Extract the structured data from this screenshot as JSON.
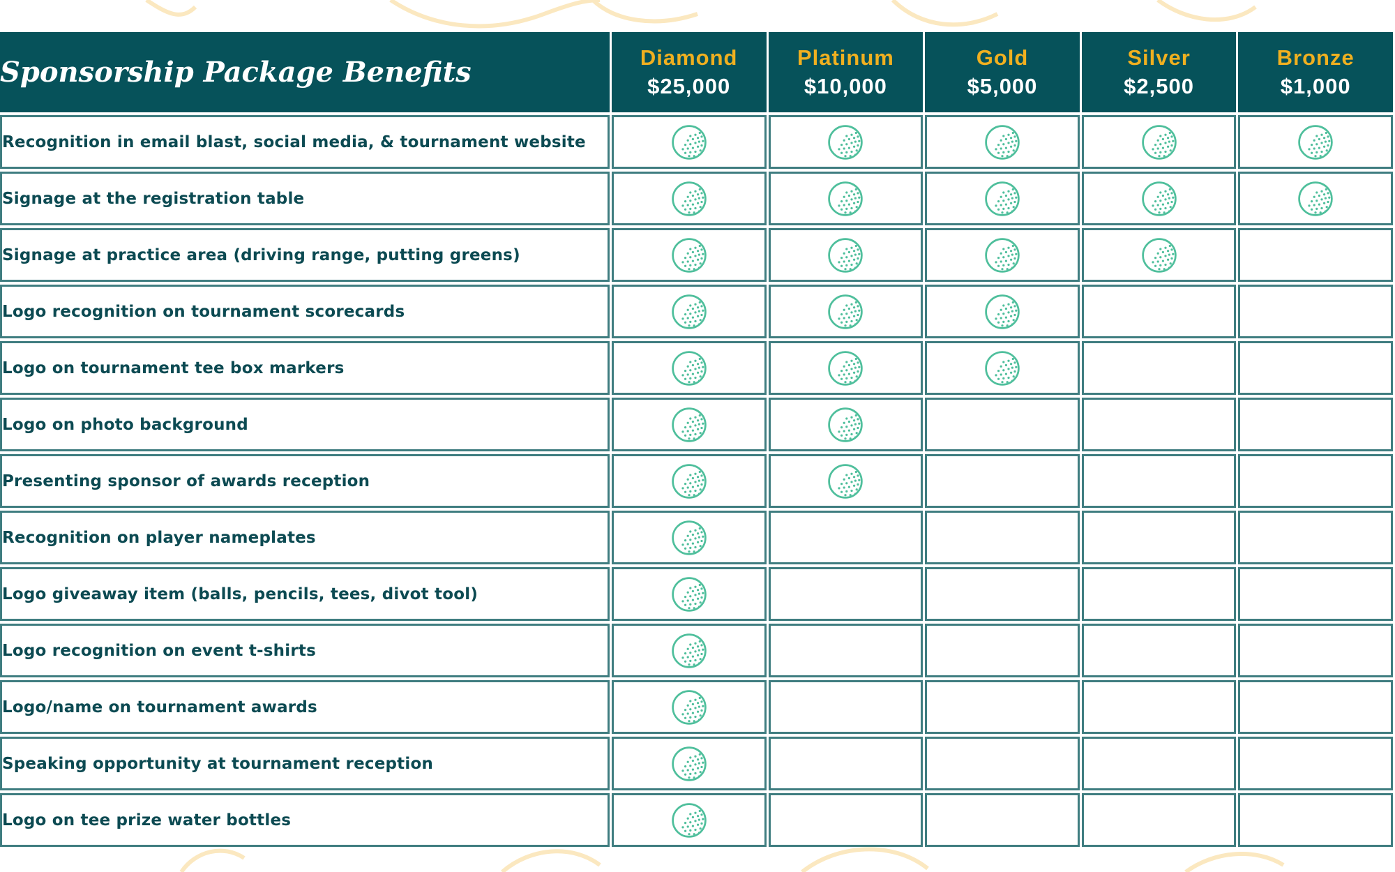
{
  "table": {
    "title": "Sponsorship Package Benefits",
    "tiers": [
      {
        "name": "Diamond",
        "price": "$25,000"
      },
      {
        "name": "Platinum",
        "price": "$10,000"
      },
      {
        "name": "Gold",
        "price": "$5,000"
      },
      {
        "name": "Silver",
        "price": "$2,500"
      },
      {
        "name": "Bronze",
        "price": "$1,000"
      }
    ],
    "rows": [
      {
        "benefit": "Recognition in email blast, social media, & tournament website",
        "included": [
          true,
          true,
          true,
          true,
          true
        ]
      },
      {
        "benefit": "Signage at the registration table",
        "included": [
          true,
          true,
          true,
          true,
          true
        ]
      },
      {
        "benefit": "Signage at practice area (driving range, putting greens)",
        "included": [
          true,
          true,
          true,
          true,
          false
        ]
      },
      {
        "benefit": "Logo recognition on tournament scorecards",
        "included": [
          true,
          true,
          true,
          false,
          false
        ]
      },
      {
        "benefit": "Logo on tournament tee box markers",
        "included": [
          true,
          true,
          true,
          false,
          false
        ]
      },
      {
        "benefit": "Logo on photo background",
        "included": [
          true,
          true,
          false,
          false,
          false
        ]
      },
      {
        "benefit": "Presenting sponsor of awards reception",
        "included": [
          true,
          true,
          false,
          false,
          false
        ]
      },
      {
        "benefit": "Recognition on player nameplates",
        "included": [
          true,
          false,
          false,
          false,
          false
        ]
      },
      {
        "benefit": "Logo giveaway item (balls, pencils, tees, divot tool)",
        "included": [
          true,
          false,
          false,
          false,
          false
        ]
      },
      {
        "benefit": "Logo recognition on event t-shirts",
        "included": [
          true,
          false,
          false,
          false,
          false
        ]
      },
      {
        "benefit": "Logo/name on tournament awards",
        "included": [
          true,
          false,
          false,
          false,
          false
        ]
      },
      {
        "benefit": "Speaking opportunity at tournament reception",
        "included": [
          true,
          false,
          false,
          false,
          false
        ]
      },
      {
        "benefit": "Logo on tee prize water bottles",
        "included": [
          true,
          false,
          false,
          false,
          false
        ]
      }
    ],
    "mark_icon": "golf-ball-icon"
  },
  "colors": {
    "header_bg": "#06525a",
    "tier_name": "#f0b020",
    "border": "#3f7d80",
    "benefit_text": "#0c4a52",
    "golf_ball": "#4fbf9c",
    "decor": "#fbe8c0"
  }
}
